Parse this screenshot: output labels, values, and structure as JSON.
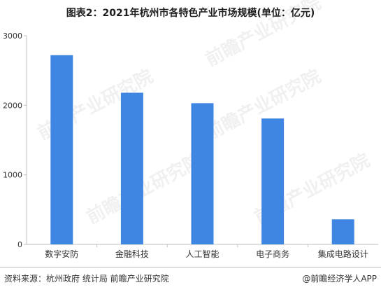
{
  "title": "图表2：2021年杭州市各特色产业市场规模(单位：亿元)",
  "footer": {
    "source": "资料来源：杭州政府 统计局 前瞻产业研究院",
    "credit": "@前瞻经济学人APP"
  },
  "watermark": {
    "text": "前瞻产业研究院"
  },
  "colors": {
    "bar": "#3f86e2",
    "axis": "#bfbfbf",
    "text": "#333333"
  },
  "chart_data": {
    "type": "bar",
    "title": "图表2：2021年杭州市各特色产业市场规模(单位：亿元)",
    "xlabel": "",
    "ylabel": "",
    "categories": [
      "数字安防",
      "金融科技",
      "人工智能",
      "电子商务",
      "集成电路设计"
    ],
    "values": [
      2720,
      2180,
      2030,
      1810,
      360
    ],
    "ylim": [
      0,
      3000
    ],
    "yticks": [
      "0",
      "1000",
      "2000",
      "3000"
    ],
    "grid": false,
    "legend": "none"
  }
}
